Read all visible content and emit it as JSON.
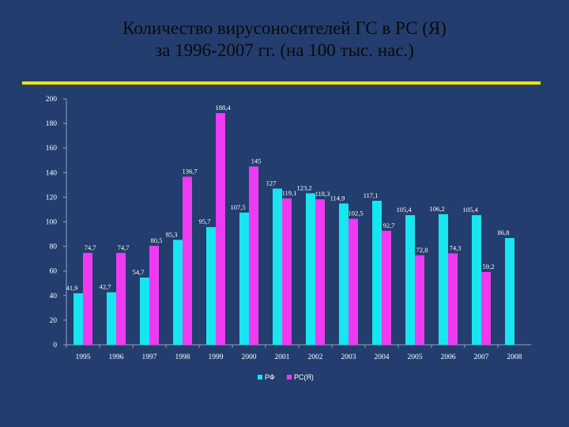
{
  "slide": {
    "title_line1": "Количество вирусоносителей ГС в РС (Я)",
    "title_line2": "за 1996-2007 гг. (на 100 тыс. нас.)"
  },
  "chart_data": {
    "type": "bar",
    "title": "Количество вирусоносителей ГС в РС (Я) за 1996-2007 гг. (на 100 тыс. нас.)",
    "categories": [
      "1995",
      "1996",
      "1997",
      "1998",
      "1999",
      "2000",
      "2001",
      "2002",
      "2003",
      "2004",
      "2005",
      "2006",
      "2007",
      "2008"
    ],
    "series": [
      {
        "name": "РФ",
        "color": "#16e6f0",
        "values": [
          41.9,
          42.7,
          54.7,
          85.3,
          95.7,
          107.5,
          127,
          123.2,
          114.9,
          117.1,
          105.4,
          106.2,
          105.4,
          86.8
        ],
        "labels": [
          "41,9",
          "42,7",
          "54,7",
          "85,3",
          "95,7",
          "107,5",
          "127",
          "123,2",
          "114,9",
          "117,1",
          "105,4",
          "106,2",
          "105,4",
          "86,8"
        ]
      },
      {
        "name": "РС(Я)",
        "color": "#ee3af0",
        "values": [
          74.7,
          74.7,
          80.5,
          136.7,
          188.4,
          145,
          119.1,
          118.3,
          102.5,
          92.7,
          72.8,
          74.3,
          59.2,
          null
        ],
        "labels": [
          "74,7",
          "74,7",
          "80,5",
          "136,7",
          "188,4",
          "145",
          "119,1",
          "118,3",
          "102,5",
          "92,7",
          "72,8",
          "74,3",
          "59,2",
          ""
        ]
      }
    ],
    "yticks": [
      0,
      20,
      40,
      60,
      80,
      100,
      120,
      140,
      160,
      180,
      200
    ],
    "ylim": [
      0,
      200
    ],
    "xlabel": "",
    "ylabel": "",
    "grid": false,
    "legend_position": "bottom"
  }
}
